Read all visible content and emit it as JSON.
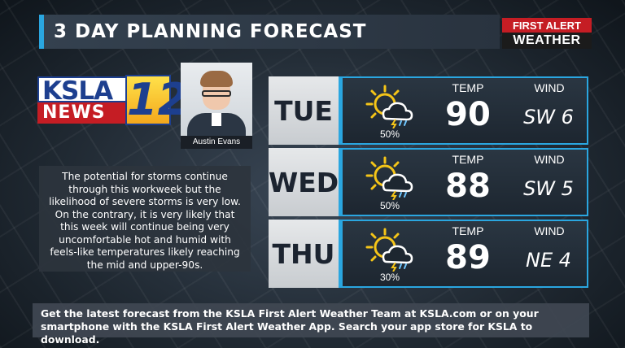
{
  "title": "3 DAY PLANNING FORECAST",
  "brand": {
    "first_alert_top": "FIRST ALERT",
    "first_alert_bottom": "WEATHER",
    "ksla_top": "KSLA",
    "ksla_bottom": "NEWS",
    "ksla_number": "12"
  },
  "meteorologist": {
    "name": "Austin Evans"
  },
  "discussion": "The potential for storms continue through this workweek but the likelihood of severe storms is very low. On the contrary, it is very likely that this week will continue being very uncomfortable hot and humid with feels-like temperatures likely reaching the mid and upper-90s.",
  "days": [
    {
      "day": "TUE",
      "icon": "partly-sunny-storm-icon",
      "pop": "50%",
      "temp_label": "TEMP",
      "temp": "90",
      "wind_label": "WIND",
      "wind": "SW 6"
    },
    {
      "day": "WED",
      "icon": "partly-sunny-storm-icon",
      "pop": "50%",
      "temp_label": "TEMP",
      "temp": "88",
      "wind_label": "WIND",
      "wind": "SW 5"
    },
    {
      "day": "THU",
      "icon": "partly-sunny-storm-icon",
      "pop": "30%",
      "temp_label": "TEMP",
      "temp": "89",
      "wind_label": "WIND",
      "wind": "NE 4"
    }
  ],
  "footer": "Get the latest forecast from the KSLA First Alert Weather Team at KSLA.com or on your smartphone with the KSLA First Alert Weather App. Search your app store for KSLA to download.",
  "colors": {
    "accent": "#2aa6e0",
    "sun": "#f5c518",
    "brand_red": "#c51d24",
    "brand_blue": "#1d3f8f"
  }
}
